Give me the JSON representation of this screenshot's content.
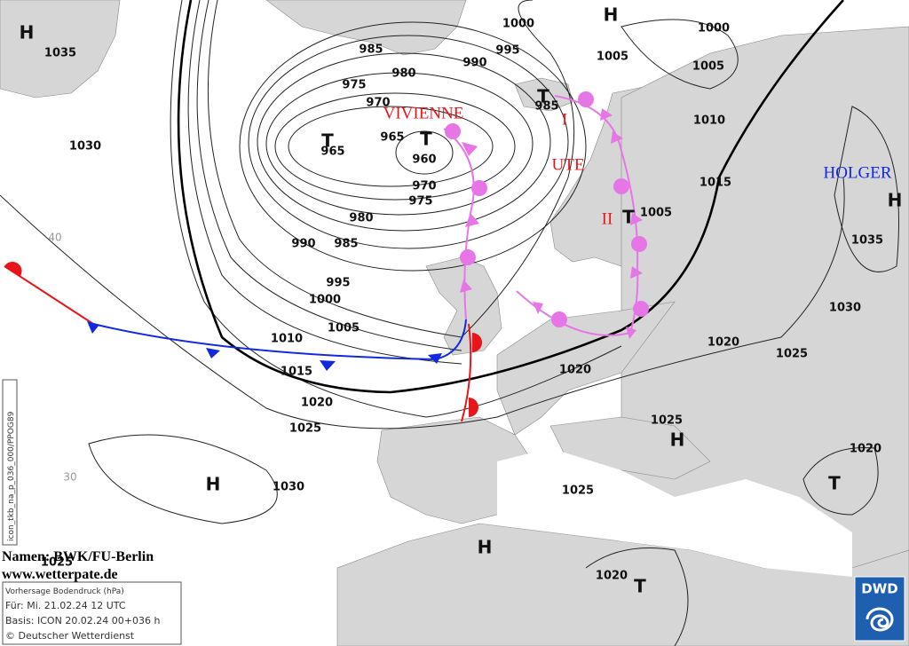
{
  "map": {
    "isobar_labels": [
      "1035",
      "1030",
      "985",
      "980",
      "975",
      "970",
      "965",
      "965",
      "960",
      "970",
      "975",
      "980",
      "985",
      "990",
      "995",
      "1000",
      "1005",
      "1010",
      "1015",
      "1020",
      "1025",
      "1030",
      "1025",
      "1000",
      "995",
      "990",
      "985",
      "1000",
      "1005",
      "1005",
      "1010",
      "1015",
      "1005",
      "1035",
      "1030",
      "1020",
      "1025",
      "1020",
      "1025",
      "1020",
      "1025",
      "1020"
    ],
    "pressure_centers": [
      "H",
      "H",
      "T",
      "T",
      "T",
      "T",
      "H",
      "H",
      "T",
      "H",
      "H",
      "T"
    ],
    "system_names": [
      "VIVIENNE",
      "I",
      "UTE",
      "II",
      "HOLGER"
    ],
    "grid_labels": [
      "40",
      "30"
    ]
  },
  "credits": {
    "names": "Namen: BWK/FU-Berlin",
    "url": "www.wetterpate.de"
  },
  "info_box": {
    "title": "Vorhersage Bodendruck (hPa)",
    "valid": "Für:  Mi. 21.02.24  12 UTC",
    "basis": "Basis: ICON  20.02.24 00+036 h",
    "copyright": "© Deutscher Wetterdienst"
  },
  "side_label": "icon_tkb_na_p_036_000/PPOG89",
  "logo": "DWD"
}
